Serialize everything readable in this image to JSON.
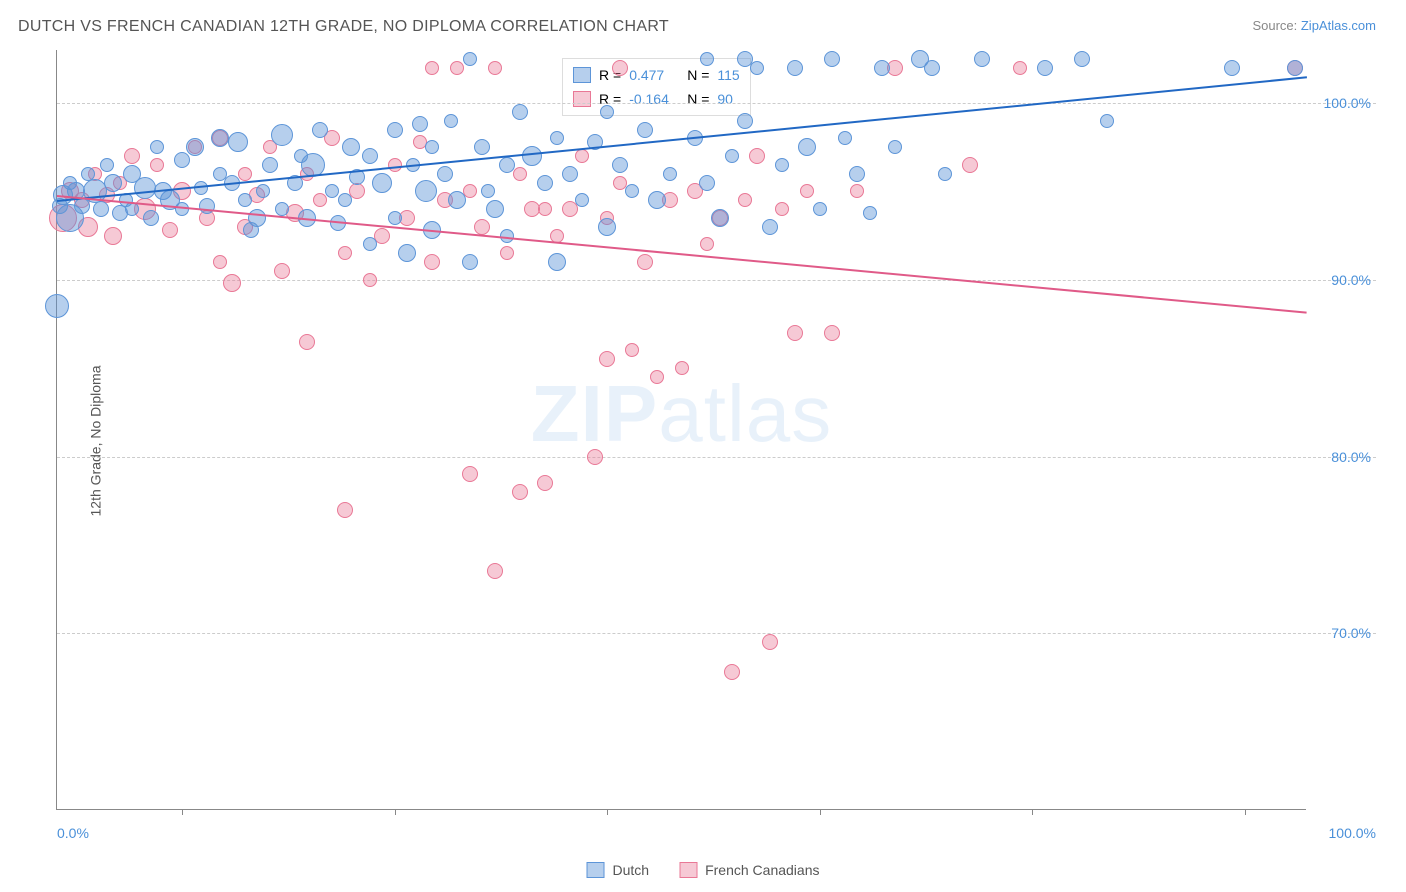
{
  "header": {
    "title": "DUTCH VS FRENCH CANADIAN 12TH GRADE, NO DIPLOMA CORRELATION CHART",
    "source_prefix": "Source: ",
    "source_link": "ZipAtlas.com"
  },
  "watermark": {
    "part1": "ZIP",
    "part2": "atlas"
  },
  "axes": {
    "y_title": "12th Grade, No Diploma",
    "x_min_label": "0.0%",
    "x_max_label": "100.0%",
    "y_ticks": [
      {
        "value": 70,
        "label": "70.0%"
      },
      {
        "value": 80,
        "label": "80.0%"
      },
      {
        "value": 90,
        "label": "90.0%"
      },
      {
        "value": 100,
        "label": "100.0%"
      }
    ],
    "y_domain": [
      60,
      103
    ],
    "x_domain": [
      0,
      100
    ],
    "x_tick_positions": [
      10,
      27,
      44,
      61,
      78,
      95
    ]
  },
  "series": {
    "dutch": {
      "label": "Dutch",
      "color_fill": "rgba(93,149,216,0.45)",
      "color_stroke": "#5d95d8",
      "legend_color": "#5d95d8",
      "R_label": "R =",
      "R_value": "0.477",
      "N_label": "N =",
      "N_value": "115",
      "trend": {
        "x1": 0,
        "y1": 94.5,
        "x2": 100,
        "y2": 101.5,
        "color": "#2168c4"
      }
    },
    "french": {
      "label": "French Canadians",
      "color_fill": "rgba(233,120,150,0.40)",
      "color_stroke": "#e97896",
      "legend_color": "#e97896",
      "R_label": "R =",
      "R_value": "-0.164",
      "N_label": "N =",
      "N_value": "90",
      "trend": {
        "x1": 0,
        "y1": 94.8,
        "x2": 100,
        "y2": 88.2,
        "color": "#e05a88"
      }
    }
  },
  "points_dutch": [
    {
      "x": 0,
      "y": 88.5,
      "r": 12
    },
    {
      "x": 0.2,
      "y": 94.2,
      "r": 8
    },
    {
      "x": 0.5,
      "y": 94.8,
      "r": 10
    },
    {
      "x": 1,
      "y": 95.5,
      "r": 7
    },
    {
      "x": 1,
      "y": 93.5,
      "r": 14
    },
    {
      "x": 1.5,
      "y": 95.0,
      "r": 9
    },
    {
      "x": 2,
      "y": 94.2,
      "r": 8
    },
    {
      "x": 2.5,
      "y": 96.0,
      "r": 7
    },
    {
      "x": 3,
      "y": 95.0,
      "r": 12
    },
    {
      "x": 3.5,
      "y": 94.0,
      "r": 8
    },
    {
      "x": 4,
      "y": 96.5,
      "r": 7
    },
    {
      "x": 4.5,
      "y": 95.5,
      "r": 9
    },
    {
      "x": 5,
      "y": 93.8,
      "r": 8
    },
    {
      "x": 5.5,
      "y": 94.5,
      "r": 7
    },
    {
      "x": 6,
      "y": 96.0,
      "r": 9
    },
    {
      "x": 6,
      "y": 94.0,
      "r": 7
    },
    {
      "x": 7,
      "y": 95.2,
      "r": 11
    },
    {
      "x": 7.5,
      "y": 93.5,
      "r": 8
    },
    {
      "x": 8,
      "y": 97.5,
      "r": 7
    },
    {
      "x": 8.5,
      "y": 95.0,
      "r": 9
    },
    {
      "x": 9,
      "y": 94.5,
      "r": 10
    },
    {
      "x": 10,
      "y": 96.8,
      "r": 8
    },
    {
      "x": 10,
      "y": 94.0,
      "r": 7
    },
    {
      "x": 11,
      "y": 97.5,
      "r": 9
    },
    {
      "x": 11.5,
      "y": 95.2,
      "r": 7
    },
    {
      "x": 12,
      "y": 94.2,
      "r": 8
    },
    {
      "x": 13,
      "y": 96.0,
      "r": 7
    },
    {
      "x": 13,
      "y": 98.0,
      "r": 9
    },
    {
      "x": 14,
      "y": 95.5,
      "r": 8
    },
    {
      "x": 14.5,
      "y": 97.8,
      "r": 10
    },
    {
      "x": 15,
      "y": 94.5,
      "r": 7
    },
    {
      "x": 15.5,
      "y": 92.8,
      "r": 8
    },
    {
      "x": 16,
      "y": 93.5,
      "r": 9
    },
    {
      "x": 16.5,
      "y": 95.0,
      "r": 7
    },
    {
      "x": 17,
      "y": 96.5,
      "r": 8
    },
    {
      "x": 18,
      "y": 98.2,
      "r": 11
    },
    {
      "x": 18,
      "y": 94.0,
      "r": 7
    },
    {
      "x": 19,
      "y": 95.5,
      "r": 8
    },
    {
      "x": 19.5,
      "y": 97.0,
      "r": 7
    },
    {
      "x": 20,
      "y": 93.5,
      "r": 9
    },
    {
      "x": 20.5,
      "y": 96.5,
      "r": 12
    },
    {
      "x": 21,
      "y": 98.5,
      "r": 8
    },
    {
      "x": 22,
      "y": 95.0,
      "r": 7
    },
    {
      "x": 22.5,
      "y": 93.2,
      "r": 8
    },
    {
      "x": 23,
      "y": 94.5,
      "r": 7
    },
    {
      "x": 23.5,
      "y": 97.5,
      "r": 9
    },
    {
      "x": 24,
      "y": 95.8,
      "r": 8
    },
    {
      "x": 25,
      "y": 92.0,
      "r": 7
    },
    {
      "x": 25,
      "y": 97.0,
      "r": 8
    },
    {
      "x": 26,
      "y": 95.5,
      "r": 10
    },
    {
      "x": 27,
      "y": 98.5,
      "r": 8
    },
    {
      "x": 27,
      "y": 93.5,
      "r": 7
    },
    {
      "x": 28,
      "y": 91.5,
      "r": 9
    },
    {
      "x": 28.5,
      "y": 96.5,
      "r": 7
    },
    {
      "x": 29,
      "y": 98.8,
      "r": 8
    },
    {
      "x": 29.5,
      "y": 95.0,
      "r": 11
    },
    {
      "x": 30,
      "y": 92.8,
      "r": 9
    },
    {
      "x": 30,
      "y": 97.5,
      "r": 7
    },
    {
      "x": 31,
      "y": 96.0,
      "r": 8
    },
    {
      "x": 31.5,
      "y": 99.0,
      "r": 7
    },
    {
      "x": 32,
      "y": 94.5,
      "r": 9
    },
    {
      "x": 33,
      "y": 91.0,
      "r": 8
    },
    {
      "x": 33,
      "y": 102.5,
      "r": 7
    },
    {
      "x": 34,
      "y": 97.5,
      "r": 8
    },
    {
      "x": 34.5,
      "y": 95.0,
      "r": 7
    },
    {
      "x": 35,
      "y": 94.0,
      "r": 9
    },
    {
      "x": 36,
      "y": 96.5,
      "r": 8
    },
    {
      "x": 36,
      "y": 92.5,
      "r": 7
    },
    {
      "x": 37,
      "y": 99.5,
      "r": 8
    },
    {
      "x": 38,
      "y": 97.0,
      "r": 10
    },
    {
      "x": 39,
      "y": 95.5,
      "r": 8
    },
    {
      "x": 40,
      "y": 91.0,
      "r": 9
    },
    {
      "x": 40,
      "y": 98.0,
      "r": 7
    },
    {
      "x": 41,
      "y": 96.0,
      "r": 8
    },
    {
      "x": 42,
      "y": 94.5,
      "r": 7
    },
    {
      "x": 43,
      "y": 97.8,
      "r": 8
    },
    {
      "x": 44,
      "y": 99.5,
      "r": 7
    },
    {
      "x": 44,
      "y": 93.0,
      "r": 9
    },
    {
      "x": 45,
      "y": 96.5,
      "r": 8
    },
    {
      "x": 46,
      "y": 95.0,
      "r": 7
    },
    {
      "x": 47,
      "y": 98.5,
      "r": 8
    },
    {
      "x": 48,
      "y": 94.5,
      "r": 9
    },
    {
      "x": 49,
      "y": 96.0,
      "r": 7
    },
    {
      "x": 51,
      "y": 98.0,
      "r": 8
    },
    {
      "x": 52,
      "y": 95.5,
      "r": 8
    },
    {
      "x": 52,
      "y": 102.5,
      "r": 7
    },
    {
      "x": 53,
      "y": 93.5,
      "r": 9
    },
    {
      "x": 54,
      "y": 97.0,
      "r": 7
    },
    {
      "x": 55,
      "y": 99.0,
      "r": 8
    },
    {
      "x": 55,
      "y": 102.5,
      "r": 8
    },
    {
      "x": 56,
      "y": 102.0,
      "r": 7
    },
    {
      "x": 57,
      "y": 93.0,
      "r": 8
    },
    {
      "x": 58,
      "y": 96.5,
      "r": 7
    },
    {
      "x": 59,
      "y": 102.0,
      "r": 8
    },
    {
      "x": 60,
      "y": 97.5,
      "r": 9
    },
    {
      "x": 61,
      "y": 94.0,
      "r": 7
    },
    {
      "x": 62,
      "y": 102.5,
      "r": 8
    },
    {
      "x": 63,
      "y": 98.0,
      "r": 7
    },
    {
      "x": 64,
      "y": 96.0,
      "r": 8
    },
    {
      "x": 65,
      "y": 93.8,
      "r": 7
    },
    {
      "x": 66,
      "y": 102.0,
      "r": 8
    },
    {
      "x": 67,
      "y": 97.5,
      "r": 7
    },
    {
      "x": 69,
      "y": 102.5,
      "r": 9
    },
    {
      "x": 70,
      "y": 102.0,
      "r": 8
    },
    {
      "x": 71,
      "y": 96.0,
      "r": 7
    },
    {
      "x": 74,
      "y": 102.5,
      "r": 8
    },
    {
      "x": 79,
      "y": 102.0,
      "r": 8
    },
    {
      "x": 82,
      "y": 102.5,
      "r": 8
    },
    {
      "x": 84,
      "y": 99.0,
      "r": 7
    },
    {
      "x": 94,
      "y": 102.0,
      "r": 8
    },
    {
      "x": 99,
      "y": 102.0,
      "r": 8
    }
  ],
  "points_french": [
    {
      "x": 0.5,
      "y": 93.5,
      "r": 14
    },
    {
      "x": 1,
      "y": 95.0,
      "r": 9
    },
    {
      "x": 2,
      "y": 94.5,
      "r": 8
    },
    {
      "x": 2.5,
      "y": 93.0,
      "r": 10
    },
    {
      "x": 3,
      "y": 96.0,
      "r": 7
    },
    {
      "x": 4,
      "y": 94.8,
      "r": 8
    },
    {
      "x": 4.5,
      "y": 92.5,
      "r": 9
    },
    {
      "x": 5,
      "y": 95.5,
      "r": 7
    },
    {
      "x": 6,
      "y": 97.0,
      "r": 8
    },
    {
      "x": 7,
      "y": 94.0,
      "r": 11
    },
    {
      "x": 8,
      "y": 96.5,
      "r": 7
    },
    {
      "x": 9,
      "y": 92.8,
      "r": 8
    },
    {
      "x": 10,
      "y": 95.0,
      "r": 9
    },
    {
      "x": 11,
      "y": 97.5,
      "r": 7
    },
    {
      "x": 12,
      "y": 93.5,
      "r": 8
    },
    {
      "x": 13,
      "y": 91.0,
      "r": 7
    },
    {
      "x": 13,
      "y": 98.0,
      "r": 8
    },
    {
      "x": 14,
      "y": 89.8,
      "r": 9
    },
    {
      "x": 15,
      "y": 96.0,
      "r": 7
    },
    {
      "x": 15,
      "y": 93.0,
      "r": 8
    },
    {
      "x": 16,
      "y": 94.8,
      "r": 8
    },
    {
      "x": 17,
      "y": 97.5,
      "r": 7
    },
    {
      "x": 18,
      "y": 90.5,
      "r": 8
    },
    {
      "x": 19,
      "y": 93.8,
      "r": 9
    },
    {
      "x": 20,
      "y": 96.0,
      "r": 7
    },
    {
      "x": 20,
      "y": 86.5,
      "r": 8
    },
    {
      "x": 21,
      "y": 94.5,
      "r": 7
    },
    {
      "x": 22,
      "y": 98.0,
      "r": 8
    },
    {
      "x": 23,
      "y": 91.5,
      "r": 7
    },
    {
      "x": 23,
      "y": 77.0,
      "r": 8
    },
    {
      "x": 24,
      "y": 95.0,
      "r": 8
    },
    {
      "x": 25,
      "y": 90.0,
      "r": 7
    },
    {
      "x": 26,
      "y": 92.5,
      "r": 8
    },
    {
      "x": 27,
      "y": 96.5,
      "r": 7
    },
    {
      "x": 28,
      "y": 93.5,
      "r": 8
    },
    {
      "x": 29,
      "y": 97.8,
      "r": 7
    },
    {
      "x": 30,
      "y": 91.0,
      "r": 8
    },
    {
      "x": 30,
      "y": 102.0,
      "r": 7
    },
    {
      "x": 31,
      "y": 94.5,
      "r": 8
    },
    {
      "x": 32,
      "y": 102.0,
      "r": 7
    },
    {
      "x": 33,
      "y": 79.0,
      "r": 8
    },
    {
      "x": 33,
      "y": 95.0,
      "r": 7
    },
    {
      "x": 34,
      "y": 93.0,
      "r": 8
    },
    {
      "x": 35,
      "y": 102.0,
      "r": 7
    },
    {
      "x": 35,
      "y": 73.5,
      "r": 8
    },
    {
      "x": 36,
      "y": 91.5,
      "r": 7
    },
    {
      "x": 37,
      "y": 78.0,
      "r": 8
    },
    {
      "x": 37,
      "y": 96.0,
      "r": 7
    },
    {
      "x": 38,
      "y": 94.0,
      "r": 8
    },
    {
      "x": 39,
      "y": 94.0,
      "r": 7
    },
    {
      "x": 39,
      "y": 78.5,
      "r": 8
    },
    {
      "x": 40,
      "y": 92.5,
      "r": 7
    },
    {
      "x": 41,
      "y": 94.0,
      "r": 8
    },
    {
      "x": 42,
      "y": 97.0,
      "r": 7
    },
    {
      "x": 43,
      "y": 80.0,
      "r": 8
    },
    {
      "x": 44,
      "y": 93.5,
      "r": 7
    },
    {
      "x": 44,
      "y": 85.5,
      "r": 8
    },
    {
      "x": 45,
      "y": 95.5,
      "r": 7
    },
    {
      "x": 45,
      "y": 102.0,
      "r": 8
    },
    {
      "x": 46,
      "y": 86.0,
      "r": 7
    },
    {
      "x": 47,
      "y": 91.0,
      "r": 8
    },
    {
      "x": 48,
      "y": 84.5,
      "r": 7
    },
    {
      "x": 49,
      "y": 94.5,
      "r": 8
    },
    {
      "x": 50,
      "y": 85.0,
      "r": 7
    },
    {
      "x": 51,
      "y": 95.0,
      "r": 8
    },
    {
      "x": 52,
      "y": 92.0,
      "r": 7
    },
    {
      "x": 53,
      "y": 93.5,
      "r": 8
    },
    {
      "x": 54,
      "y": 67.8,
      "r": 8
    },
    {
      "x": 55,
      "y": 94.5,
      "r": 7
    },
    {
      "x": 56,
      "y": 97.0,
      "r": 8
    },
    {
      "x": 57,
      "y": 69.5,
      "r": 8
    },
    {
      "x": 58,
      "y": 94.0,
      "r": 7
    },
    {
      "x": 59,
      "y": 87.0,
      "r": 8
    },
    {
      "x": 60,
      "y": 95.0,
      "r": 7
    },
    {
      "x": 62,
      "y": 87.0,
      "r": 8
    },
    {
      "x": 64,
      "y": 95.0,
      "r": 7
    },
    {
      "x": 67,
      "y": 102.0,
      "r": 8
    },
    {
      "x": 73,
      "y": 96.5,
      "r": 8
    },
    {
      "x": 77,
      "y": 102.0,
      "r": 7
    },
    {
      "x": 99,
      "y": 102.0,
      "r": 8
    }
  ]
}
